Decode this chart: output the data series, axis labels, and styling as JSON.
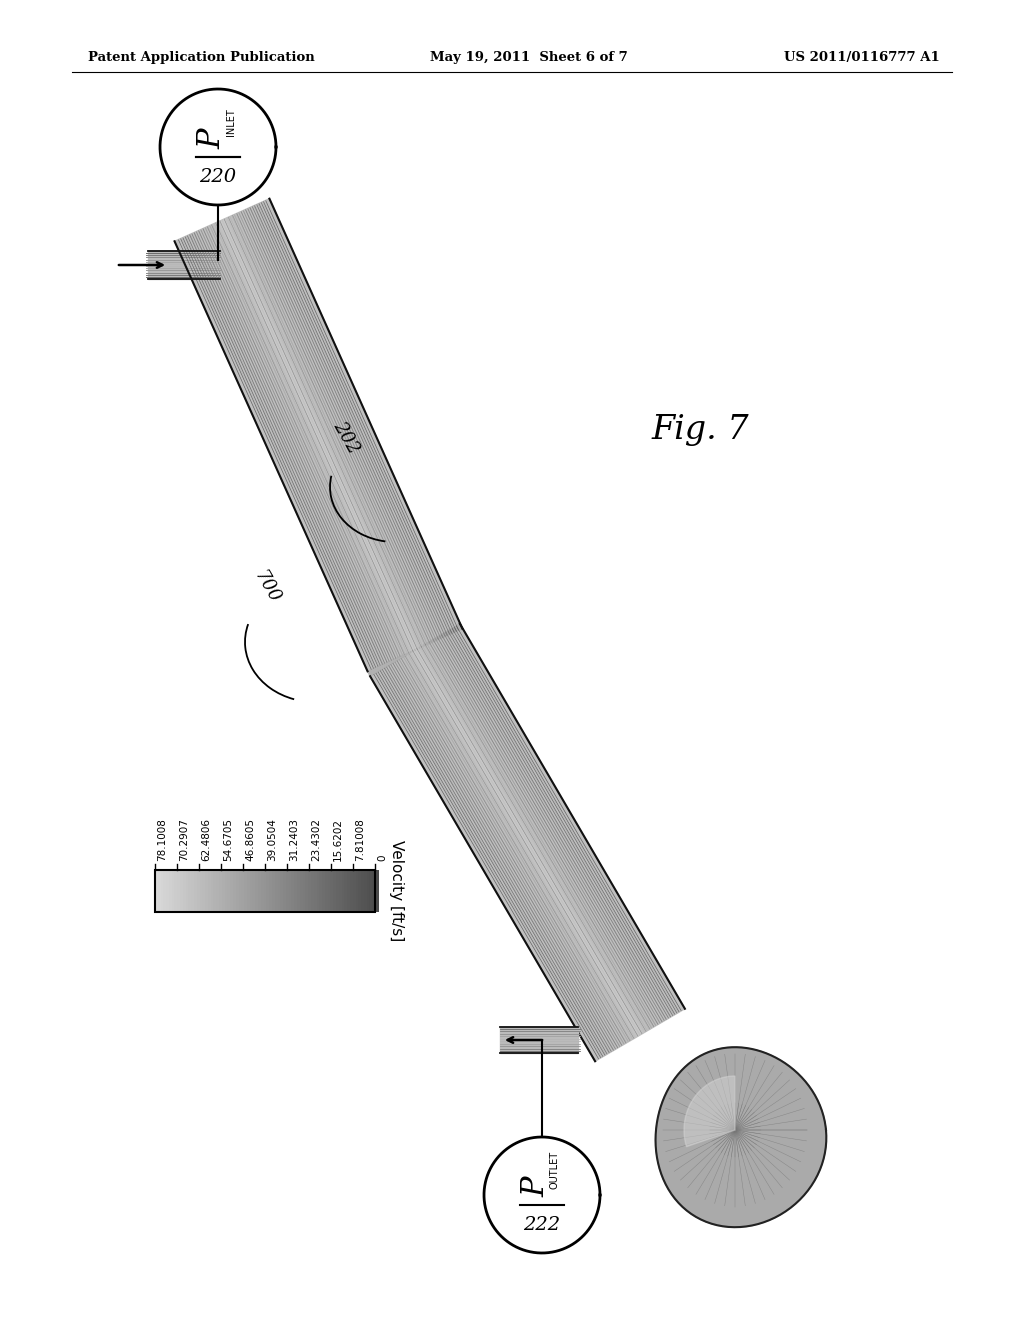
{
  "header_left": "Patent Application Publication",
  "header_center": "May 19, 2011  Sheet 6 of 7",
  "header_right": "US 2011/0116777 A1",
  "fig_label": "Fig. 7",
  "label_inlet": "P",
  "label_inlet_sub": "INLET",
  "label_inlet_num": "220",
  "label_outlet": "P",
  "label_outlet_sub": "OUTLET",
  "label_outlet_num": "222",
  "label_202": "202",
  "label_700": "700",
  "velocity_label": "Velocity [ft/s]",
  "velocity_values": [
    "78.1008",
    "70.2907",
    "62.4806",
    "54.6705",
    "46.8605",
    "39.0504",
    "31.2403",
    "23.4302",
    "15.6202",
    "7.81008",
    "0"
  ],
  "bg_color": "#ffffff",
  "text_color": "#000000"
}
